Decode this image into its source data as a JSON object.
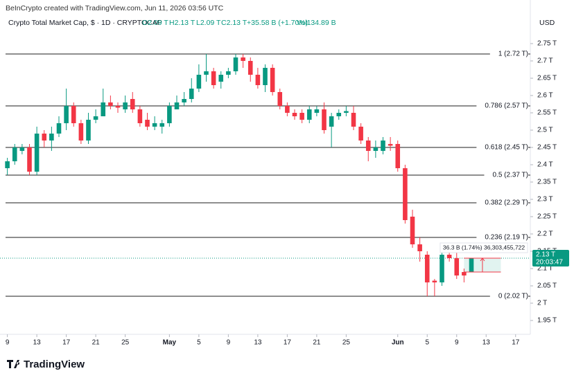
{
  "header": {
    "credit": "BeInCrypto created with TradingView.com, Jun 11, 2026 03:56 UTC",
    "symbol": "Crypto Total Market Cap, $ · 1D · CRYPTOCAP",
    "ohlc": [
      "O2.09 T",
      "H2.13 T",
      "L2.09 T",
      "C2.13 T"
    ],
    "change": "+35.58 B (+1.70%)",
    "volume": "Vol134.89 B",
    "currency": "USD"
  },
  "logo": "TradingView",
  "chart_data": {
    "type": "candlestick",
    "x": [
      "2026-04-09",
      "2026-04-10",
      "2026-04-11",
      "2026-04-12",
      "2026-04-13",
      "2026-04-14",
      "2026-04-15",
      "2026-04-16",
      "2026-04-17",
      "2026-04-18",
      "2026-04-19",
      "2026-04-20",
      "2026-04-21",
      "2026-04-22",
      "2026-04-23",
      "2026-04-24",
      "2026-04-25",
      "2026-04-26",
      "2026-04-27",
      "2026-04-28",
      "2026-04-29",
      "2026-04-30",
      "2026-05-01",
      "2026-05-02",
      "2026-05-03",
      "2026-05-04",
      "2026-05-05",
      "2026-05-06",
      "2026-05-07",
      "2026-05-08",
      "2026-05-09",
      "2026-05-10",
      "2026-05-11",
      "2026-05-12",
      "2026-05-13",
      "2026-05-14",
      "2026-05-15",
      "2026-05-16",
      "2026-05-17",
      "2026-05-18",
      "2026-05-19",
      "2026-05-20",
      "2026-05-21",
      "2026-05-22",
      "2026-05-23",
      "2026-05-24",
      "2026-05-25",
      "2026-05-26",
      "2026-05-27",
      "2026-05-28",
      "2026-05-29",
      "2026-05-30",
      "2026-05-31",
      "2026-06-01",
      "2026-06-02",
      "2026-06-03",
      "2026-06-04",
      "2026-06-05",
      "2026-06-06",
      "2026-06-07",
      "2026-06-08",
      "2026-06-09",
      "2026-06-10",
      "2026-06-11"
    ],
    "open": [
      2.39,
      2.41,
      2.44,
      2.45,
      2.38,
      2.49,
      2.47,
      2.49,
      2.52,
      2.57,
      2.52,
      2.47,
      2.53,
      2.54,
      2.58,
      2.57,
      2.56,
      2.59,
      2.56,
      2.53,
      2.51,
      2.51,
      2.52,
      2.56,
      2.58,
      2.59,
      2.62,
      2.66,
      2.67,
      2.64,
      2.66,
      2.67,
      2.71,
      2.7,
      2.66,
      2.63,
      2.68,
      2.61,
      2.57,
      2.55,
      2.55,
      2.53,
      2.55,
      2.56,
      2.51,
      2.54,
      2.55,
      2.55,
      2.51,
      2.47,
      2.44,
      2.44,
      2.46,
      2.46,
      2.39,
      2.25,
      2.17,
      2.14,
      2.065,
      2.06,
      2.14,
      2.13,
      2.09,
      2.09
    ],
    "high": [
      2.42,
      2.46,
      2.46,
      2.46,
      2.51,
      2.5,
      2.51,
      2.54,
      2.62,
      2.58,
      2.53,
      2.55,
      2.56,
      2.62,
      2.6,
      2.58,
      2.6,
      2.61,
      2.57,
      2.55,
      2.54,
      2.53,
      2.58,
      2.6,
      2.61,
      2.65,
      2.69,
      2.72,
      2.68,
      2.67,
      2.68,
      2.72,
      2.72,
      2.71,
      2.68,
      2.69,
      2.69,
      2.62,
      2.58,
      2.56,
      2.56,
      2.57,
      2.57,
      2.58,
      2.55,
      2.56,
      2.57,
      2.57,
      2.52,
      2.48,
      2.47,
      2.48,
      2.48,
      2.47,
      2.4,
      2.27,
      2.19,
      2.15,
      2.07,
      2.17,
      2.17,
      2.15,
      2.1,
      2.13
    ],
    "low": [
      2.37,
      2.4,
      2.43,
      2.37,
      2.37,
      2.45,
      2.44,
      2.48,
      2.5,
      2.51,
      2.46,
      2.46,
      2.52,
      2.54,
      2.56,
      2.55,
      2.55,
      2.55,
      2.51,
      2.5,
      2.5,
      2.49,
      2.51,
      2.56,
      2.57,
      2.58,
      2.61,
      2.64,
      2.62,
      2.62,
      2.65,
      2.66,
      2.68,
      2.64,
      2.62,
      2.61,
      2.6,
      2.56,
      2.54,
      2.53,
      2.52,
      2.52,
      2.54,
      2.49,
      2.45,
      2.53,
      2.54,
      2.5,
      2.46,
      2.41,
      2.42,
      2.43,
      2.44,
      2.38,
      2.23,
      2.16,
      2.12,
      2.02,
      2.02,
      2.05,
      2.12,
      2.07,
      2.06,
      2.09
    ],
    "close": [
      2.41,
      2.45,
      2.45,
      2.38,
      2.49,
      2.47,
      2.49,
      2.52,
      2.57,
      2.52,
      2.47,
      2.53,
      2.54,
      2.58,
      2.57,
      2.565,
      2.58,
      2.56,
      2.52,
      2.51,
      2.52,
      2.52,
      2.57,
      2.58,
      2.59,
      2.62,
      2.66,
      2.67,
      2.63,
      2.66,
      2.67,
      2.71,
      2.7,
      2.66,
      2.63,
      2.68,
      2.61,
      2.57,
      2.55,
      2.54,
      2.53,
      2.56,
      2.56,
      2.5,
      2.54,
      2.55,
      2.555,
      2.51,
      2.47,
      2.44,
      2.45,
      2.47,
      2.455,
      2.39,
      2.24,
      2.17,
      2.15,
      2.06,
      2.06,
      2.14,
      2.13,
      2.08,
      2.08,
      2.13
    ],
    "up_color": "#089981",
    "down_color": "#f23645",
    "xlim": [
      "2026-04-08",
      "2026-06-19"
    ],
    "xticks": [
      {
        "value": "2026-04-09",
        "label": "9"
      },
      {
        "value": "2026-04-13",
        "label": "13"
      },
      {
        "value": "2026-04-17",
        "label": "17"
      },
      {
        "value": "2026-04-21",
        "label": "21"
      },
      {
        "value": "2026-04-25",
        "label": "25"
      },
      {
        "value": "2026-05-01",
        "label": "May"
      },
      {
        "value": "2026-05-05",
        "label": "5"
      },
      {
        "value": "2026-05-09",
        "label": "9"
      },
      {
        "value": "2026-05-13",
        "label": "13"
      },
      {
        "value": "2026-05-17",
        "label": "17"
      },
      {
        "value": "2026-05-21",
        "label": "21"
      },
      {
        "value": "2026-05-25",
        "label": "25"
      },
      {
        "value": "2026-06-01",
        "label": "Jun"
      },
      {
        "value": "2026-06-05",
        "label": "5"
      },
      {
        "value": "2026-06-09",
        "label": "9"
      },
      {
        "value": "2026-06-13",
        "label": "13"
      },
      {
        "value": "2026-06-17",
        "label": "17"
      }
    ],
    "ylim": [
      1.91,
      2.8
    ],
    "yticks": [
      {
        "value": 1.95,
        "label": "1.95 T"
      },
      {
        "value": 2,
        "label": "2 T"
      },
      {
        "value": 2.05,
        "label": "2.05 T"
      },
      {
        "value": 2.1,
        "label": "2.1 T"
      },
      {
        "value": 2.15,
        "label": "2.15 T"
      },
      {
        "value": 2.2,
        "label": "2.2 T"
      },
      {
        "value": 2.25,
        "label": "2.25 T"
      },
      {
        "value": 2.3,
        "label": "2.3 T"
      },
      {
        "value": 2.35,
        "label": "2.35 T"
      },
      {
        "value": 2.4,
        "label": "2.4 T"
      },
      {
        "value": 2.45,
        "label": "2.45 T"
      },
      {
        "value": 2.5,
        "label": "2.5 T"
      },
      {
        "value": 2.55,
        "label": "2.55 T"
      },
      {
        "value": 2.6,
        "label": "2.6 T"
      },
      {
        "value": 2.65,
        "label": "2.65 T"
      },
      {
        "value": 2.7,
        "label": "2.7 T"
      },
      {
        "value": 2.75,
        "label": "2.75 T"
      }
    ],
    "levels": [
      {
        "label": "1 (2.72 T)",
        "value": 2.72
      },
      {
        "label": "0.786 (2.57 T)",
        "value": 2.57
      },
      {
        "label": "0.618 (2.45 T)",
        "value": 2.45
      },
      {
        "label": "0.5 (2.37 T)",
        "value": 2.37
      },
      {
        "label": "0.382 (2.29 T)",
        "value": 2.29
      },
      {
        "label": "0.236 (2.19 T)",
        "value": 2.19
      },
      {
        "label": "0 (2.02 T)",
        "value": 2.02
      }
    ],
    "level_color": "#4a4a4a",
    "last_price": {
      "value": 2.13,
      "label": "2.13 T",
      "countdown": "20:03:47"
    },
    "measure": {
      "label": "36.3 B (1.74%) 36,303,455,722",
      "from": 2.09,
      "to": 2.13,
      "start": "2026-06-10",
      "end": "2026-06-15"
    }
  }
}
